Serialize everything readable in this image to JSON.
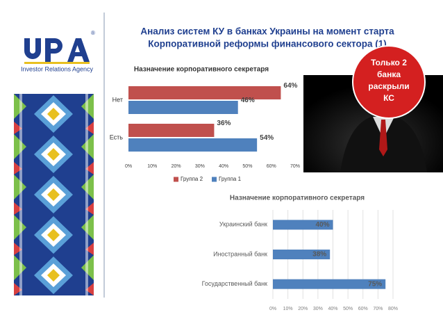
{
  "slide": {
    "title": [
      "Анализ систем КУ в банках Украины на момент старта",
      "Корпоративной реформы  финансового сектора (1)"
    ],
    "logo_mark": "®",
    "logo_tagline": "Investor Relations Agency",
    "callout": [
      "Только 2",
      "банка",
      "раскрыли",
      "КС"
    ]
  },
  "chart_data": [
    {
      "type": "hbar",
      "title": "Назначение корпоративного секретаря",
      "categories": [
        "Нет",
        "Есть"
      ],
      "series": [
        {
          "name": "Группа 2",
          "color": "#c0504d",
          "values": [
            64,
            36
          ],
          "value_labels": [
            "64%",
            "36%"
          ]
        },
        {
          "name": "Группа 1",
          "color": "#4f81bd",
          "values": [
            46,
            54
          ],
          "value_labels": [
            "46%",
            "54%"
          ]
        }
      ],
      "xlim": [
        0,
        70
      ],
      "xticks": [
        {
          "value": 0,
          "label": "0%"
        },
        {
          "value": 10,
          "label": "10%"
        },
        {
          "value": 20,
          "label": "20%"
        },
        {
          "value": 30,
          "label": "30%"
        },
        {
          "value": 40,
          "label": "40%"
        },
        {
          "value": 50,
          "label": "50%"
        },
        {
          "value": 60,
          "label": "60%"
        },
        {
          "value": 70,
          "label": "70%"
        }
      ],
      "legend": "bottom",
      "grid": false
    },
    {
      "type": "hbar",
      "title": "Назначение корпоративного секретаря",
      "categories": [
        "Украинский банк",
        "Иностранный банк",
        "Государственный банк"
      ],
      "series": [
        {
          "color": "#4f81bd",
          "values": [
            40,
            38,
            75
          ],
          "value_labels": [
            "40%",
            "38%",
            "75%"
          ]
        }
      ],
      "xlim": [
        0,
        80
      ],
      "xticks": [
        {
          "value": 0,
          "label": "0%"
        },
        {
          "value": 10,
          "label": "10%"
        },
        {
          "value": 20,
          "label": "20%"
        },
        {
          "value": 30,
          "label": "30%"
        },
        {
          "value": 40,
          "label": "40%"
        },
        {
          "value": 50,
          "label": "50%"
        },
        {
          "value": 60,
          "label": "60%"
        },
        {
          "value": 70,
          "label": "70%"
        },
        {
          "value": 80,
          "label": "80%"
        }
      ],
      "grid": true
    }
  ]
}
